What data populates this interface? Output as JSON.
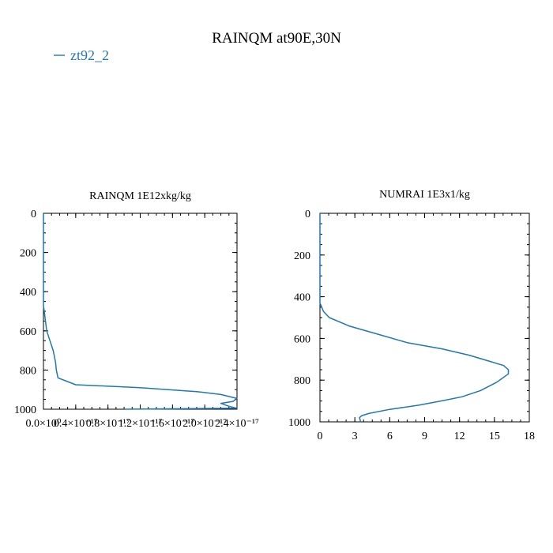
{
  "title": "RAINQM at90E,30N",
  "legend": {
    "label": "zt92_2",
    "color": "#1f77b4"
  },
  "chart_data": [
    {
      "type": "line",
      "title": "RAINQM  1E12xkg/kg",
      "xlabel": "",
      "ylabel": "",
      "xlim": [
        0,
        2.4e-17
      ],
      "ylim": [
        1000,
        0
      ],
      "y_inverted": true,
      "x_tick_values": [
        0,
        4e-18,
        8e-18,
        1.2e-17,
        1.6e-17,
        2e-17,
        2.4e-17
      ],
      "x_tick_labels": [
        "0.0×10⁰",
        "0.4×10⁻¹⁷",
        "0.8×10⁻¹⁷",
        "1.2×10⁻¹⁷",
        "1.6×10⁻¹⁷",
        "2.0×10⁻¹⁷",
        "2.4×10⁻¹⁷"
      ],
      "y_tick_values": [
        0,
        200,
        400,
        600,
        800,
        1000
      ],
      "y_tick_labels": [
        "0",
        "200",
        "400",
        "600",
        "800",
        "1000"
      ],
      "series": [
        {
          "name": "zt92_2",
          "color": "#1f77b4",
          "x": [
            0,
            0,
            1e-19,
            4e-19,
            8e-19,
            1.2e-18,
            1.5e-18,
            1.6e-18,
            1.8e-18,
            4e-18,
            1.2e-17,
            1.9e-17,
            2.2e-17,
            2.4e-17,
            2.35e-17,
            2.2e-17,
            2.3e-17,
            2.4e-17,
            1e-17
          ],
          "y": [
            0,
            470,
            500,
            600,
            650,
            700,
            760,
            800,
            840,
            875,
            890,
            910,
            925,
            945,
            960,
            970,
            985,
            995,
            1000
          ]
        }
      ]
    },
    {
      "type": "line",
      "title": "NUMRAI  1E3x1/kg",
      "xlabel": "",
      "ylabel": "",
      "xlim": [
        0,
        18
      ],
      "ylim": [
        1000,
        0
      ],
      "y_inverted": true,
      "x_tick_values": [
        0,
        3,
        6,
        9,
        12,
        15,
        18
      ],
      "x_tick_labels": [
        "0",
        "3",
        "6",
        "9",
        "12",
        "15",
        "18"
      ],
      "y_tick_values": [
        0,
        200,
        400,
        600,
        800,
        1000
      ],
      "y_tick_labels": [
        "0",
        "200",
        "400",
        "600",
        "800",
        "1000"
      ],
      "series": [
        {
          "name": "zt92_2",
          "color": "#1f77b4",
          "x": [
            0,
            0,
            0.3,
            0.8,
            2.5,
            5,
            7.5,
            10.5,
            12.8,
            14.6,
            15.8,
            16.2,
            16.2,
            15.2,
            13.8,
            12.2,
            10.4,
            8.5,
            6.0,
            4.2,
            3.6,
            3.4,
            3.5
          ],
          "y": [
            0,
            430,
            470,
            500,
            540,
            580,
            620,
            650,
            680,
            710,
            730,
            750,
            770,
            810,
            850,
            880,
            900,
            920,
            940,
            960,
            970,
            980,
            1000
          ]
        }
      ]
    }
  ]
}
